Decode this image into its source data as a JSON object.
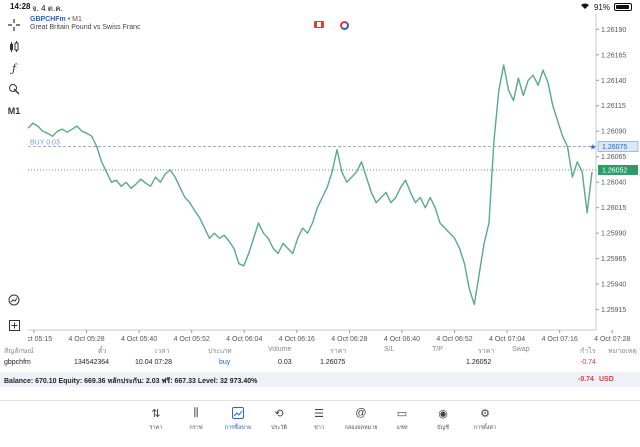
{
  "status_bar": {
    "time": "14:28",
    "date": "จ. 4 ต.ค.",
    "battery": "91%"
  },
  "chart": {
    "symbol": "GBPCHFm",
    "timeframe": "M1",
    "description": "Great Britain Pound vs Swiss Franc",
    "tools": [
      "crosshair-icon",
      "indicators-icon",
      "function-icon",
      "objects-icon",
      "M1",
      "zoom-icon",
      "add-icon"
    ],
    "colors": {
      "line": "#5aa987",
      "buy_line": "#6b9ccc",
      "price_tag": "#2e9b6a",
      "buy_tag": "#6b9ccc"
    }
  },
  "chart_data": {
    "type": "line",
    "x_labels": [
      "4 Oct 05:15",
      "4 Oct 05:28",
      "4 Oct 05:40",
      "4 Oct 05:52",
      "4 Oct 06:04",
      "4 Oct 06:16",
      "4 Oct 06:28",
      "4 Oct 06:40",
      "4 Oct 06:52",
      "4 Oct 07:04",
      "4 Oct 07:16",
      "4 Oct 07:28"
    ],
    "y_ticks": [
      "1.26190",
      "1.26165",
      "1.26140",
      "1.26115",
      "1.26090",
      "1.26065",
      "1.26040",
      "1.26015",
      "1.25990",
      "1.25965",
      "1.25940",
      "1.25915"
    ],
    "ylim": [
      1.25895,
      1.26205
    ],
    "values": [
      1.26093,
      1.26098,
      1.26095,
      1.2609,
      1.26088,
      1.26085,
      1.2609,
      1.26092,
      1.26089,
      1.26092,
      1.26095,
      1.2609,
      1.26088,
      1.26085,
      1.26075,
      1.2606,
      1.2605,
      1.2604,
      1.26042,
      1.26036,
      1.2604,
      1.26034,
      1.26038,
      1.26043,
      1.26039,
      1.26036,
      1.26045,
      1.2604,
      1.26048,
      1.26052,
      1.26045,
      1.26035,
      1.26025,
      1.2602,
      1.26012,
      1.26005,
      1.25995,
      1.25985,
      1.2599,
      1.25985,
      1.25988,
      1.25982,
      1.25975,
      1.2596,
      1.25958,
      1.2597,
      1.25985,
      1.26,
      1.2599,
      1.25985,
      1.25975,
      1.2597,
      1.2598,
      1.25975,
      1.2597,
      1.25985,
      1.25995,
      1.2599,
      1.26,
      1.26015,
      1.26025,
      1.26035,
      1.2605,
      1.26072,
      1.2605,
      1.2604,
      1.26045,
      1.2605,
      1.2606,
      1.26045,
      1.2603,
      1.2602,
      1.26025,
      1.2603,
      1.2602,
      1.26025,
      1.26035,
      1.26042,
      1.2603,
      1.2602,
      1.26025,
      1.26015,
      1.26025,
      1.26015,
      1.26,
      1.25995,
      1.2599,
      1.25985,
      1.25975,
      1.2596,
      1.25935,
      1.2592,
      1.2595,
      1.2598,
      1.26,
      1.2608,
      1.2613,
      1.26155,
      1.2613,
      1.2612,
      1.26142,
      1.26125,
      1.2614,
      1.26145,
      1.26135,
      1.2615,
      1.26138,
      1.26115,
      1.261,
      1.26085,
      1.26075,
      1.26045,
      1.2606,
      1.2605,
      1.2601,
      1.2605
    ],
    "current_price": 1.26052,
    "buy_price": 1.26075,
    "grid": true
  },
  "order_line": {
    "label": "BUY 0.03",
    "price": "1.26075",
    "current": "1.26052"
  },
  "table": {
    "headers": [
      "สัญลักษณ์",
      "ตั๋ว",
      "เวลา",
      "ประเภท",
      "Volume",
      "ราคา",
      "S/L",
      "T/P",
      "ราคา",
      "Swap",
      "กำไร",
      "หมายเหตุ"
    ],
    "row": [
      "gbpchfm",
      "134542364",
      "10.04 07:28",
      "buy",
      "0.03",
      "1.26075",
      "",
      "",
      "1.26052",
      "",
      "-0.74",
      ""
    ]
  },
  "balance": {
    "text": "Balance: 670.10 Equity: 669.36 หลักประกัน: 2.03 ฟรี: 667.33 Level: 32 973.40%",
    "pl": "-0.74",
    "currency": "USD"
  },
  "nav": [
    {
      "icon": "quotes-icon",
      "glyph": "⇅",
      "label": "ราคา"
    },
    {
      "icon": "chart-icon",
      "glyph": "⫼",
      "label": "กราฟ"
    },
    {
      "icon": "trade-icon",
      "glyph": "📈",
      "label": "การซื้อขาย"
    },
    {
      "icon": "history-icon",
      "glyph": "⟲",
      "label": "ประวัติ"
    },
    {
      "icon": "news-icon",
      "glyph": "☰",
      "label": "ข่าว"
    },
    {
      "icon": "mailbox-icon",
      "glyph": "@",
      "label": "กล่องจดหมาย"
    },
    {
      "icon": "chat-icon",
      "glyph": "▭",
      "label": "แชท"
    },
    {
      "icon": "account-icon",
      "glyph": "◉",
      "label": "บัญชี"
    },
    {
      "icon": "settings-icon",
      "glyph": "⚙",
      "label": "การตั้งค่า"
    }
  ]
}
